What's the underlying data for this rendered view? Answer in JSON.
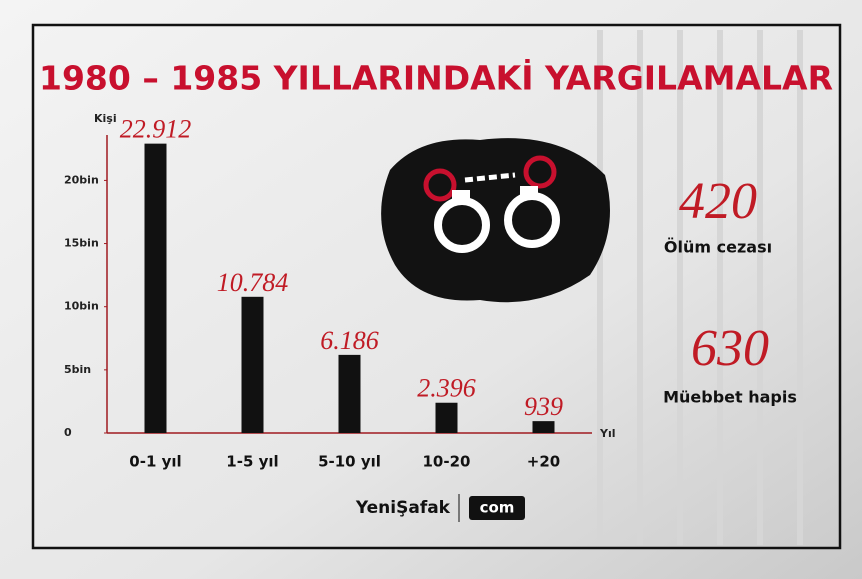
{
  "chart_data": {
    "type": "bar",
    "title": "1980 – 1985 YILLARINDAKİ YARGILAMALAR",
    "y_label": "Kişi",
    "x_label": "Yıl",
    "categories": [
      "0-1 yıl",
      "1-5 yıl",
      "5-10 yıl",
      "10-20",
      "+20"
    ],
    "values": [
      22912,
      10784,
      6186,
      2396,
      939
    ],
    "value_labels": [
      "22.912",
      "10.784",
      "6.186",
      "2.396",
      "939"
    ],
    "color": "#111111",
    "ylim": [
      0,
      23200
    ],
    "yticks": [
      0,
      {
        "value": 5000,
        "label": "5bin"
      },
      {
        "value": 10000,
        "label": "10bin"
      },
      {
        "value": 15000,
        "label": "15bin"
      },
      {
        "value": 20000,
        "label": "20bin"
      }
    ]
  },
  "stats": [
    {
      "value": 420,
      "label": "Ölüm cezası"
    },
    {
      "value": 630,
      "label": "Müebbet hapis"
    }
  ],
  "branding": {
    "name": "YeniŞafak",
    "suffix": "com"
  }
}
